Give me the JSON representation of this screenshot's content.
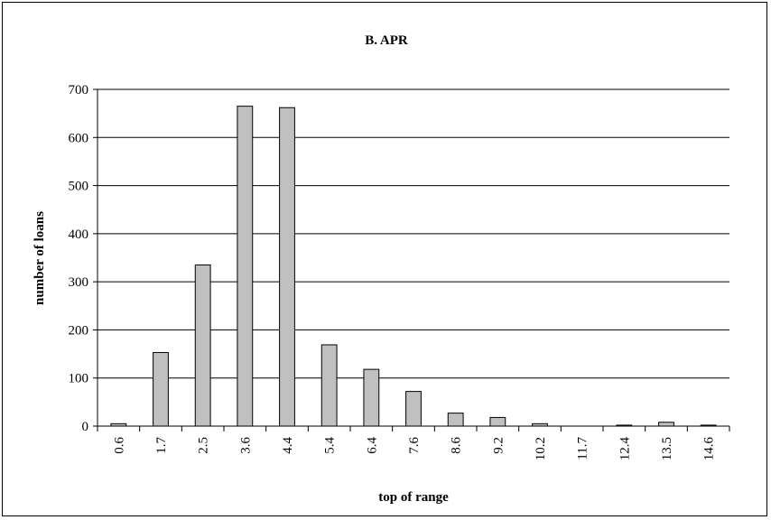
{
  "chart_data": {
    "type": "bar",
    "title": "B. APR",
    "xlabel": "top of range",
    "ylabel": "number of loans",
    "categories": [
      "0.6",
      "1.7",
      "2.5",
      "3.6",
      "4.4",
      "5.4",
      "6.4",
      "7.6",
      "8.6",
      "9.2",
      "10.2",
      "11.7",
      "12.4",
      "13.5",
      "14.6"
    ],
    "values": [
      5,
      153,
      335,
      665,
      662,
      169,
      118,
      72,
      27,
      18,
      5,
      0,
      2,
      8,
      2
    ],
    "ylim": [
      0,
      700
    ],
    "yticks": [
      0,
      100,
      200,
      300,
      400,
      500,
      600,
      700
    ],
    "grid": true,
    "legend": "none",
    "colors": {
      "bar_fill": "#c0c0c0",
      "bar_stroke": "#000000",
      "grid": "#000000"
    }
  }
}
